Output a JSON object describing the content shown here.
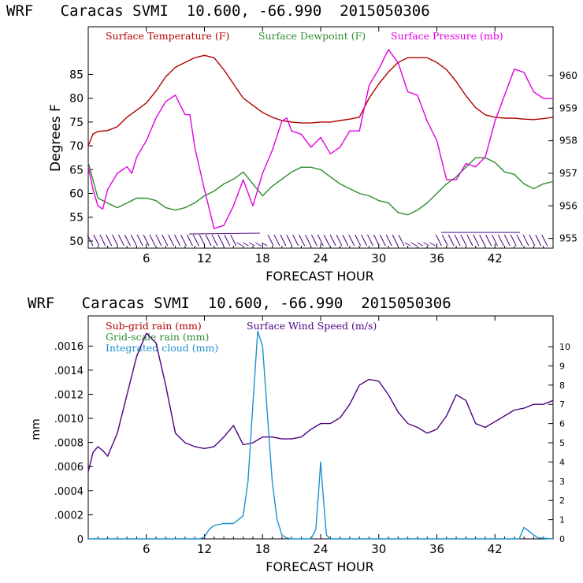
{
  "chart_data": [
    {
      "type": "line",
      "title": "WRF   Caracas SVMI  10.600, -66.990  2015050306",
      "xlabel": "FORECAST HOUR",
      "ylabel": "Degrees F",
      "xlim": [
        0,
        48
      ],
      "xticks": [
        "6",
        "12",
        "18",
        "24",
        "30",
        "36",
        "42"
      ],
      "ylim_left": [
        48.5,
        95
      ],
      "yticks_left": [
        "50",
        "55",
        "60",
        "65",
        "70",
        "75",
        "80",
        "85"
      ],
      "ylim_right": [
        954.7,
        961.5
      ],
      "yticks_right": [
        "955",
        "956",
        "957",
        "958",
        "959",
        "960"
      ],
      "legend": [
        "Surface Temperature (F)",
        "Surface Dewpoint (F)",
        "Surface Pressure (mb)"
      ],
      "colors": {
        "temperature": "#b00000",
        "dewpoint": "#2e8b2e",
        "pressure": "#e000e0",
        "wind_barbs": "#4b0082"
      },
      "series": [
        {
          "name": "Surface Temperature (F)",
          "axis": "left",
          "color": "#b00000",
          "x": [
            0,
            0.5,
            1,
            2,
            3,
            4,
            5,
            6,
            7,
            8,
            9,
            10,
            11,
            12,
            13,
            14,
            15,
            16,
            17,
            18,
            19,
            20,
            21,
            22,
            23,
            24,
            25,
            26,
            27,
            28,
            29,
            30,
            31,
            32,
            33,
            34,
            35,
            36,
            37,
            38,
            39,
            40,
            41,
            42,
            43,
            44,
            45,
            46,
            47,
            48
          ],
          "values": [
            70,
            72.5,
            73,
            73.2,
            74,
            76,
            77.5,
            79,
            81.5,
            84.5,
            86.5,
            87.5,
            88.5,
            89,
            88.5,
            86,
            83,
            80,
            78.5,
            77,
            76,
            75.3,
            75,
            74.8,
            74.8,
            75,
            75,
            75.3,
            75.6,
            76,
            80,
            83,
            85.5,
            87.5,
            88.5,
            88.5,
            88.5,
            87.5,
            86,
            83.5,
            80.5,
            78,
            76.5,
            76,
            75.8,
            75.8,
            75.6,
            75.5,
            75.7,
            76
          ]
        },
        {
          "name": "Surface Dewpoint (F)",
          "axis": "left",
          "color": "#2e8b2e",
          "x": [
            0,
            1,
            2,
            3,
            4,
            5,
            6,
            7,
            8,
            9,
            10,
            11,
            12,
            13,
            14,
            15,
            16,
            17,
            18,
            19,
            20,
            21,
            22,
            23,
            24,
            25,
            26,
            27,
            28,
            29,
            30,
            31,
            32,
            33,
            34,
            35,
            36,
            37,
            38,
            39,
            40,
            41,
            42,
            43,
            44,
            45,
            46,
            47,
            48
          ],
          "values": [
            66.5,
            59,
            58,
            57,
            58,
            59,
            59,
            58.5,
            57,
            56.5,
            57,
            58,
            59.5,
            60.5,
            62,
            63,
            64.5,
            62,
            59.5,
            61.5,
            63,
            64.5,
            65.5,
            65.5,
            65,
            63.5,
            62,
            61,
            60,
            59.5,
            58.5,
            58,
            56,
            55.5,
            56.5,
            58,
            60,
            62,
            63.5,
            65.5,
            67.5,
            67.5,
            66.5,
            64.5,
            64,
            62,
            61,
            62,
            62.5
          ]
        },
        {
          "name": "Surface Pressure (mb)",
          "axis": "right",
          "color": "#e000e0",
          "x": [
            0,
            0.5,
            1,
            1.5,
            2,
            3,
            4,
            4.5,
            5,
            6,
            7,
            8,
            9,
            10,
            10.5,
            11,
            12,
            13,
            14,
            15,
            16,
            17,
            18,
            19,
            20,
            20.5,
            21,
            22,
            23,
            24,
            25,
            26,
            27,
            28,
            29,
            30,
            31,
            32,
            33,
            34,
            35,
            36,
            37,
            38,
            39,
            40,
            41,
            42,
            43,
            44,
            45,
            46,
            47,
            48
          ],
          "values": [
            957.2,
            956.5,
            956.0,
            955.9,
            956.5,
            957.0,
            957.2,
            957.0,
            957.5,
            958.0,
            958.7,
            959.2,
            959.4,
            958.8,
            958.8,
            957.8,
            956.5,
            955.3,
            955.4,
            956.0,
            956.8,
            956.0,
            957.0,
            957.7,
            958.6,
            958.7,
            958.3,
            958.2,
            957.8,
            958.1,
            957.6,
            957.8,
            958.3,
            958.3,
            959.7,
            960.2,
            960.8,
            960.4,
            959.5,
            959.4,
            958.6,
            958.0,
            956.8,
            956.8,
            957.3,
            957.2,
            957.5,
            958.6,
            959.4,
            960.2,
            960.1,
            959.5,
            959.3,
            959.3
          ]
        }
      ]
    },
    {
      "type": "line",
      "title": "WRF   Caracas SVMI  10.600, -66.990  2015050306",
      "xlabel": "FORECAST HOUR",
      "ylabel": "mm",
      "xlim": [
        0,
        48
      ],
      "xticks": [
        "6",
        "12",
        "18",
        "24",
        "30",
        "36",
        "42"
      ],
      "ylim_left": [
        0,
        0.00185
      ],
      "yticks_left": [
        "0",
        ".0002",
        ".0004",
        ".0006",
        ".0008",
        ".0010",
        ".0012",
        ".0014",
        ".0016"
      ],
      "ylim_right": [
        0,
        11.6
      ],
      "yticks_right": [
        "0",
        "1",
        "2",
        "3",
        "4",
        "5",
        "6",
        "7",
        "8",
        "9",
        "10"
      ],
      "legend": [
        "Sub-grid rain (mm)",
        "Surface Wind Speed (m/s)",
        "Grid-scale rain (mm)",
        "Integrated cloud (mm)"
      ],
      "colors": {
        "subgrid": "#b00000",
        "wind": "#4b0082",
        "gridscale": "#2e8b2e",
        "cloud": "#1f8fd0"
      },
      "series": [
        {
          "name": "Surface Wind Speed (m/s)",
          "axis": "right",
          "color": "#4b0082",
          "x": [
            0,
            0.5,
            1,
            1.5,
            2,
            3,
            4,
            5,
            6,
            7,
            8,
            9,
            10,
            11,
            12,
            13,
            14,
            15,
            16,
            17,
            18,
            19,
            20,
            21,
            22,
            23,
            24,
            25,
            26,
            27,
            28,
            29,
            30,
            31,
            32,
            33,
            34,
            35,
            36,
            37,
            38,
            39,
            40,
            41,
            42,
            43,
            44,
            45,
            46,
            47,
            48
          ],
          "values": [
            3.5,
            4.5,
            4.8,
            4.6,
            4.3,
            5.5,
            7.5,
            9.5,
            10.7,
            10.2,
            8.0,
            5.5,
            5.0,
            4.8,
            4.7,
            4.8,
            5.3,
            5.9,
            4.9,
            5.0,
            5.3,
            5.3,
            5.2,
            5.2,
            5.3,
            5.7,
            6.0,
            6.0,
            6.3,
            7.0,
            8.0,
            8.3,
            8.2,
            7.5,
            6.6,
            6.0,
            5.8,
            5.5,
            5.7,
            6.4,
            7.5,
            7.2,
            6.0,
            5.8,
            6.1,
            6.4,
            6.7,
            6.8,
            7.0,
            7.0,
            7.2
          ]
        },
        {
          "name": "Integrated cloud (mm)",
          "axis": "right",
          "color": "#1f8fd0",
          "x": [
            0,
            11.5,
            12,
            12.5,
            13,
            14,
            15,
            16,
            16.5,
            17,
            17.5,
            18,
            18.5,
            19,
            19.5,
            20,
            20.5,
            21,
            22,
            23,
            23.5,
            23.8,
            24,
            24.3,
            24.6,
            25,
            44.5,
            45,
            45.5,
            46,
            46.5,
            48
          ],
          "values": [
            0,
            0,
            0.1,
            0.5,
            0.7,
            0.8,
            0.8,
            1.2,
            3.0,
            7.0,
            10.8,
            10.0,
            6.5,
            3.0,
            1.0,
            0.2,
            0.05,
            0,
            0,
            0,
            0.5,
            2.5,
            4.0,
            2.0,
            0.2,
            0,
            0,
            0.6,
            0.4,
            0.2,
            0.05,
            0
          ]
        }
      ],
      "legend_dummy": "Sub-grid rain (mm) and Grid-scale rain (mm) are zero throughout"
    }
  ]
}
